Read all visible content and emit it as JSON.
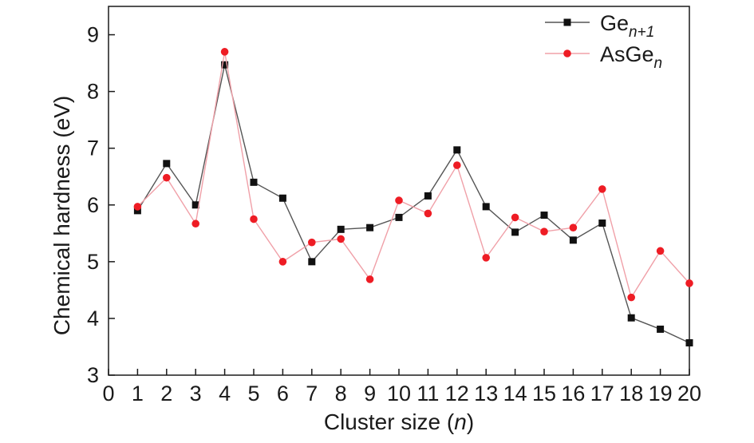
{
  "chart_data": {
    "type": "line",
    "xlabel": "Cluster size (n)",
    "xlabel_parts": {
      "before": "Cluster size (",
      "italic": "n",
      "after": ")"
    },
    "ylabel": "Chemical hardness (eV)",
    "xlim": [
      0,
      20
    ],
    "ylim": [
      3,
      9.5
    ],
    "xticks": [
      "0",
      "1",
      "2",
      "3",
      "4",
      "5",
      "6",
      "7",
      "8",
      "9",
      "10",
      "11",
      "12",
      "13",
      "14",
      "15",
      "16",
      "17",
      "18",
      "19",
      "20"
    ],
    "yticks": [
      "3",
      "4",
      "5",
      "6",
      "7",
      "8",
      "9"
    ],
    "x": [
      1,
      2,
      3,
      4,
      5,
      6,
      7,
      8,
      9,
      10,
      11,
      12,
      13,
      14,
      15,
      16,
      17,
      18,
      19,
      20
    ],
    "legend_position": "top-right",
    "grid": false,
    "series": [
      {
        "name": "Ge",
        "name_sub": "n+1",
        "color": "#555555",
        "marker_color": "#111111",
        "marker": "square",
        "values": [
          5.9,
          6.73,
          6.0,
          8.47,
          6.4,
          6.12,
          5.0,
          5.57,
          5.6,
          5.78,
          6.16,
          6.97,
          5.97,
          5.52,
          5.82,
          5.38,
          5.68,
          4.01,
          3.81,
          3.57
        ]
      },
      {
        "name": "AsGe",
        "name_sub": "n",
        "color": "#f0a0a8",
        "marker_color": "#ee1c24",
        "marker": "circle",
        "values": [
          5.97,
          6.48,
          5.67,
          8.7,
          5.75,
          5.0,
          5.34,
          5.4,
          4.69,
          6.08,
          5.85,
          6.7,
          5.07,
          5.78,
          5.53,
          5.6,
          6.28,
          4.37,
          5.19,
          4.62
        ]
      }
    ]
  }
}
